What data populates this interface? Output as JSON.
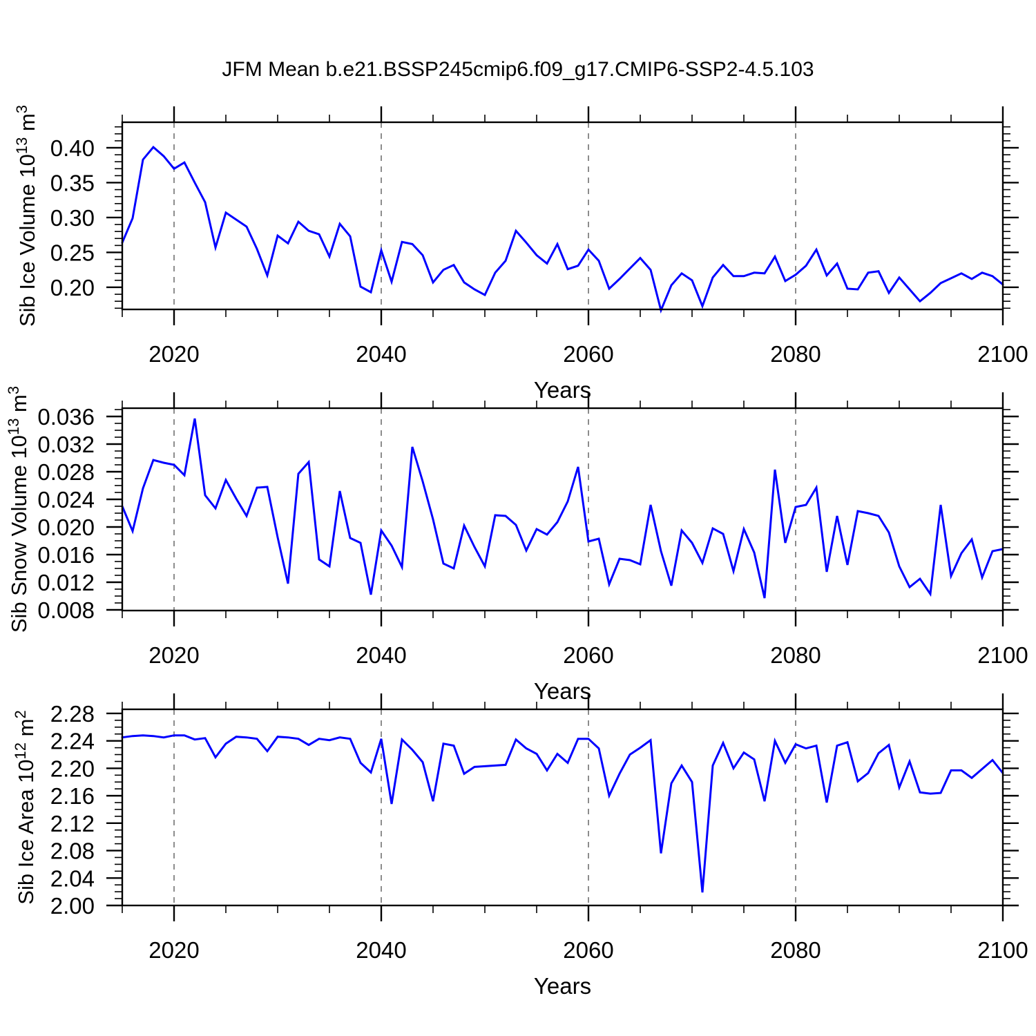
{
  "title": "JFM Mean b.e21.BSSP245cmip6.f09_g17.CMIP6-SSP2-4.5.103",
  "xlabel": "Years",
  "line_color": "#0000ff",
  "grid_color": "#808080",
  "axis_color": "#000000",
  "background_color": "#ffffff",
  "dashed_gridline_years": [
    2020,
    2040,
    2060,
    2080
  ],
  "years": [
    2015,
    2016,
    2017,
    2018,
    2019,
    2020,
    2021,
    2022,
    2023,
    2024,
    2025,
    2026,
    2027,
    2028,
    2029,
    2030,
    2031,
    2032,
    2033,
    2034,
    2035,
    2036,
    2037,
    2038,
    2039,
    2040,
    2041,
    2042,
    2043,
    2044,
    2045,
    2046,
    2047,
    2048,
    2049,
    2050,
    2051,
    2052,
    2053,
    2054,
    2055,
    2056,
    2057,
    2058,
    2059,
    2060,
    2061,
    2062,
    2063,
    2064,
    2065,
    2066,
    2067,
    2068,
    2069,
    2070,
    2071,
    2072,
    2073,
    2074,
    2075,
    2076,
    2077,
    2078,
    2079,
    2080,
    2081,
    2082,
    2083,
    2084,
    2085,
    2086,
    2087,
    2088,
    2089,
    2090,
    2091,
    2092,
    2093,
    2094,
    2095,
    2096,
    2097,
    2098,
    2099,
    2100
  ],
  "chart_data": [
    {
      "type": "line",
      "title": "JFM Mean b.e21.BSSP245cmip6.f09_g17.CMIP6-SSP2-4.5.103",
      "ylabel": "Sib Ice Volume 10^13 m^3",
      "ylabel_rich": [
        {
          "t": "Sib Ice Volume 10"
        },
        {
          "t": "13",
          "sup": true
        },
        {
          "t": " m"
        },
        {
          "t": "3",
          "sup": true
        }
      ],
      "xlabel": "Years",
      "xlim": [
        2015,
        2100
      ],
      "ylim": [
        0.1683,
        0.4366
      ],
      "ytick_major_start": 0.2,
      "ytick_major_step": 0.05,
      "ytick_minor_step": 0.01,
      "ytick_decimals": 2,
      "xticks": [
        2020,
        2040,
        2060,
        2080,
        2100
      ],
      "xtick_minor_step": 5,
      "legend": "none",
      "grid": "vertical-dashed",
      "values": [
        0.264,
        0.299,
        0.383,
        0.401,
        0.388,
        0.37,
        0.379,
        0.35,
        0.322,
        0.257,
        0.307,
        0.297,
        0.287,
        0.255,
        0.217,
        0.274,
        0.263,
        0.294,
        0.281,
        0.276,
        0.244,
        0.291,
        0.273,
        0.201,
        0.193,
        0.253,
        0.208,
        0.265,
        0.262,
        0.246,
        0.207,
        0.225,
        0.232,
        0.207,
        0.197,
        0.189,
        0.221,
        0.238,
        0.281,
        0.264,
        0.246,
        0.234,
        0.262,
        0.226,
        0.231,
        0.254,
        0.238,
        0.198,
        0.212,
        0.227,
        0.242,
        0.225,
        0.167,
        0.203,
        0.22,
        0.21,
        0.173,
        0.214,
        0.232,
        0.216,
        0.216,
        0.221,
        0.22,
        0.244,
        0.209,
        0.218,
        0.231,
        0.254,
        0.217,
        0.234,
        0.198,
        0.197,
        0.221,
        0.223,
        0.192,
        0.214,
        0.197,
        0.18,
        0.192,
        0.206,
        0.213,
        0.22,
        0.212,
        0.221,
        0.216,
        0.204
      ]
    },
    {
      "type": "line",
      "ylabel": "Sib Snow Volume 10^13 m^3",
      "ylabel_rich": [
        {
          "t": "Sib Snow Volume 10"
        },
        {
          "t": "13",
          "sup": true
        },
        {
          "t": " m"
        },
        {
          "t": "3",
          "sup": true
        }
      ],
      "xlabel": "Years",
      "xlim": [
        2015,
        2100
      ],
      "ylim": [
        0.0079,
        0.0372
      ],
      "ytick_major_start": 0.008,
      "ytick_major_step": 0.004,
      "ytick_minor_step": 0.001,
      "ytick_decimals": 3,
      "xticks": [
        2020,
        2040,
        2060,
        2080,
        2100
      ],
      "xtick_minor_step": 5,
      "legend": "none",
      "grid": "vertical-dashed",
      "values": [
        0.023,
        0.0194,
        0.0256,
        0.0297,
        0.0293,
        0.029,
        0.0275,
        0.0357,
        0.0246,
        0.0227,
        0.0268,
        0.0241,
        0.0216,
        0.0257,
        0.0258,
        0.0185,
        0.0118,
        0.0277,
        0.0294,
        0.0153,
        0.0143,
        0.0252,
        0.0184,
        0.0177,
        0.0102,
        0.0195,
        0.0173,
        0.0142,
        0.0316,
        0.0266,
        0.0211,
        0.0147,
        0.014,
        0.0202,
        0.0171,
        0.0143,
        0.0217,
        0.0216,
        0.0203,
        0.0166,
        0.0197,
        0.0189,
        0.0207,
        0.0237,
        0.0287,
        0.0179,
        0.0183,
        0.0117,
        0.0154,
        0.0152,
        0.0146,
        0.0232,
        0.0165,
        0.0115,
        0.0195,
        0.0177,
        0.0148,
        0.0198,
        0.019,
        0.0136,
        0.0197,
        0.0163,
        0.0097,
        0.0283,
        0.0177,
        0.0229,
        0.0232,
        0.0257,
        0.0135,
        0.0216,
        0.0145,
        0.0223,
        0.022,
        0.0216,
        0.0192,
        0.0143,
        0.0113,
        0.0125,
        0.0103,
        0.0232,
        0.0129,
        0.0162,
        0.0182,
        0.0127,
        0.0165,
        0.0168
      ]
    },
    {
      "type": "line",
      "ylabel": "Sib Ice Area 10^12 m^2",
      "ylabel_rich": [
        {
          "t": "Sib Ice Area 10"
        },
        {
          "t": "12",
          "sup": true
        },
        {
          "t": " m"
        },
        {
          "t": "2",
          "sup": true
        }
      ],
      "xlabel": "Years",
      "xlim": [
        2015,
        2100
      ],
      "ylim": [
        2.0,
        2.286
      ],
      "ytick_major_start": 2.0,
      "ytick_major_step": 0.04,
      "ytick_minor_step": 0.01,
      "ytick_decimals": 2,
      "xticks": [
        2020,
        2040,
        2060,
        2080,
        2100
      ],
      "xtick_minor_step": 5,
      "legend": "none",
      "grid": "vertical-dashed",
      "values": [
        2.245,
        2.247,
        2.248,
        2.247,
        2.245,
        2.248,
        2.248,
        2.242,
        2.244,
        2.216,
        2.236,
        2.246,
        2.245,
        2.243,
        2.225,
        2.246,
        2.245,
        2.243,
        2.234,
        2.243,
        2.241,
        2.245,
        2.243,
        2.208,
        2.194,
        2.243,
        2.148,
        2.242,
        2.227,
        2.209,
        2.152,
        2.236,
        2.233,
        2.192,
        2.202,
        2.203,
        2.204,
        2.205,
        2.242,
        2.229,
        2.221,
        2.197,
        2.221,
        2.208,
        2.243,
        2.243,
        2.229,
        2.16,
        2.192,
        2.22,
        2.23,
        2.241,
        2.076,
        2.178,
        2.204,
        2.18,
        2.019,
        2.204,
        2.237,
        2.2,
        2.223,
        2.213,
        2.152,
        2.24,
        2.208,
        2.235,
        2.229,
        2.233,
        2.15,
        2.233,
        2.238,
        2.181,
        2.193,
        2.222,
        2.234,
        2.172,
        2.21,
        2.165,
        2.163,
        2.164,
        2.197,
        2.197,
        2.186,
        2.199,
        2.212,
        2.193
      ]
    }
  ]
}
